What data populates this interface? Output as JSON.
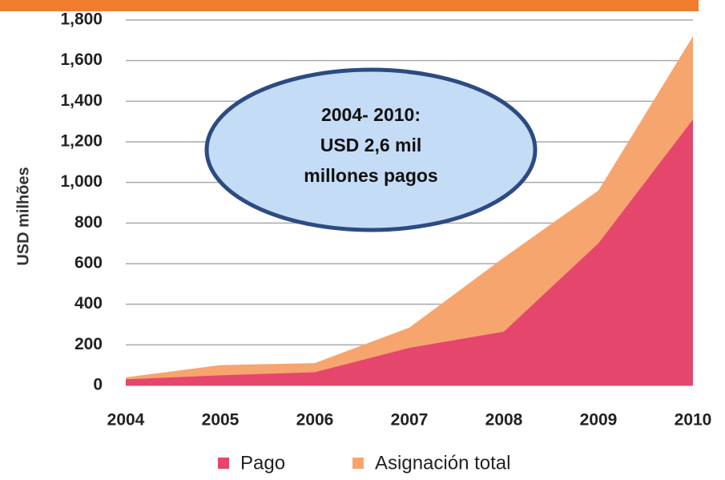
{
  "chart_data": {
    "type": "area",
    "y_label": "USD milhões",
    "categories": [
      "2004",
      "2005",
      "2006",
      "2007",
      "2008",
      "2009",
      "2010"
    ],
    "series": [
      {
        "name": "Pago",
        "color": "#e5466c",
        "values": [
          30,
          50,
          65,
          185,
          265,
          700,
          1310
        ]
      },
      {
        "name": "Asignación total",
        "color": "#f6a56f",
        "values": [
          40,
          100,
          110,
          285,
          630,
          960,
          1720
        ]
      }
    ],
    "ylim": [
      0,
      1800
    ],
    "yticks": [
      0,
      200,
      400,
      600,
      800,
      {
        "value": 1000,
        "label": "1,000"
      },
      {
        "value": 1200,
        "label": "1,200"
      },
      {
        "value": 1400,
        "label": "1,400"
      },
      {
        "value": 1600,
        "label": "1,600"
      },
      {
        "value": 1800,
        "label": "1,800"
      }
    ],
    "grid": true,
    "annotation": [
      "2004- 2010:",
      "USD 2,6 mil",
      "millones pagos"
    ]
  }
}
